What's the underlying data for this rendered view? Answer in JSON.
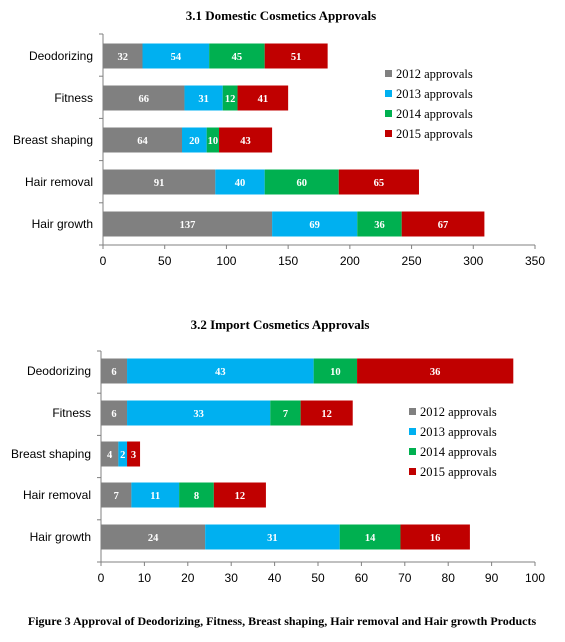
{
  "chart_data": [
    {
      "type": "bar",
      "orientation": "horizontal",
      "stacked": true,
      "title": "3.1 Domestic Cosmetics Approvals",
      "categories": [
        "Deodorizing",
        "Fitness",
        "Breast shaping",
        "Hair removal",
        "Hair growth"
      ],
      "series": [
        {
          "name": "2012 approvals",
          "color": "#808080",
          "values": [
            32,
            66,
            64,
            91,
            137
          ]
        },
        {
          "name": "2013 approvals",
          "color": "#00b0f0",
          "values": [
            54,
            31,
            20,
            40,
            69
          ]
        },
        {
          "name": "2014 approvals",
          "color": "#00b050",
          "values": [
            45,
            12,
            10,
            60,
            36
          ]
        },
        {
          "name": "2015 approvals",
          "color": "#c00000",
          "values": [
            51,
            41,
            43,
            65,
            67
          ]
        }
      ],
      "xlim": [
        0,
        350
      ],
      "xticks": [
        0,
        50,
        100,
        150,
        200,
        250,
        300,
        350
      ],
      "grid": false,
      "legend": "right"
    },
    {
      "type": "bar",
      "orientation": "horizontal",
      "stacked": true,
      "title": "3.2 Import Cosmetics Approvals",
      "categories": [
        "Deodorizing",
        "Fitness",
        "Breast shaping",
        "Hair removal",
        "Hair growth"
      ],
      "series": [
        {
          "name": "2012 approvals",
          "color": "#808080",
          "values": [
            6,
            6,
            4,
            7,
            24
          ]
        },
        {
          "name": "2013 approvals",
          "color": "#00b0f0",
          "values": [
            43,
            33,
            2,
            11,
            31
          ]
        },
        {
          "name": "2014 approvals",
          "color": "#00b050",
          "values": [
            10,
            7,
            0,
            8,
            14
          ]
        },
        {
          "name": "2015 approvals",
          "color": "#c00000",
          "values": [
            36,
            12,
            3,
            12,
            16
          ]
        }
      ],
      "xlim": [
        0,
        100
      ],
      "xticks": [
        0,
        10,
        20,
        30,
        40,
        50,
        60,
        70,
        80,
        90,
        100
      ],
      "grid": false,
      "legend": "right"
    }
  ],
  "caption": "Figure 3 Approval of Deodorizing, Fitness, Breast shaping, Hair removal and Hair growth Products"
}
